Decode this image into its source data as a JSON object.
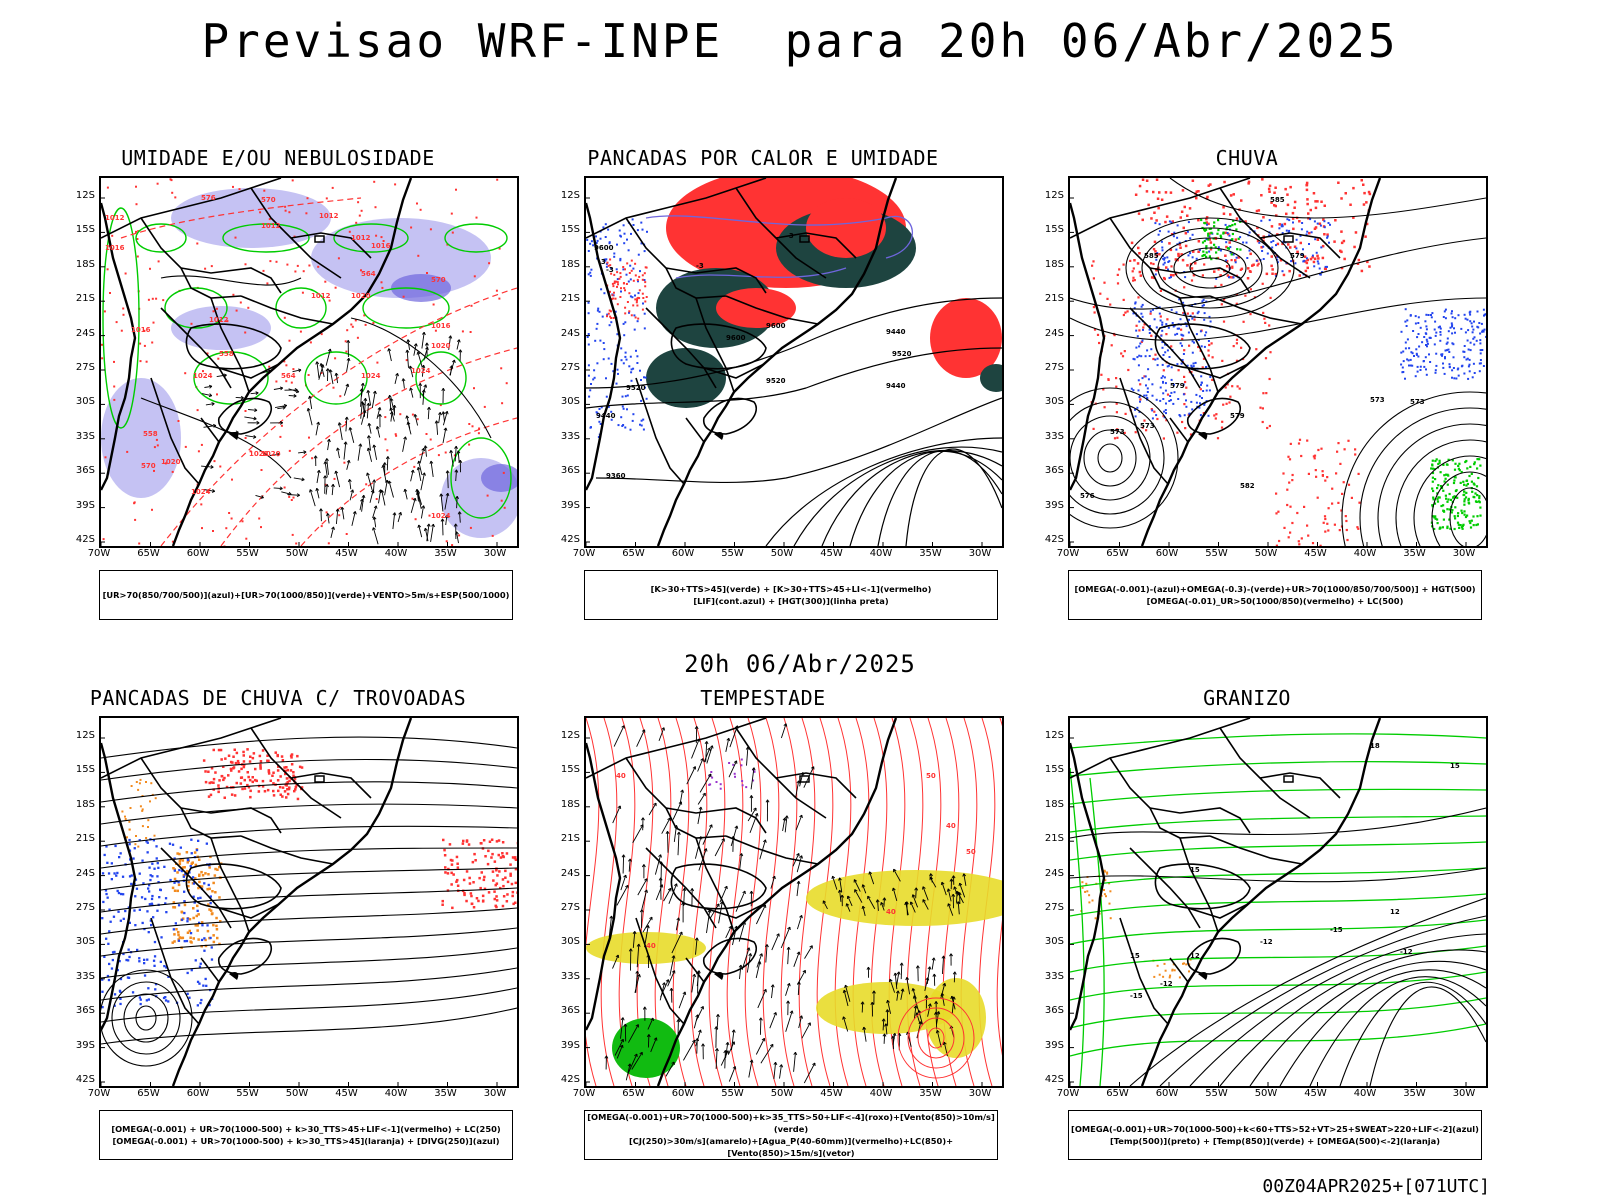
{
  "title": "Previsao WRF-INPE  para 20h 06/Abr/2025",
  "mid_label": "20h 06/Abr/2025",
  "footer": "00Z04APR2025+[071UTC]",
  "axes": {
    "lat_labels": [
      "12S",
      "15S",
      "18S",
      "21S",
      "24S",
      "27S",
      "30S",
      "33S",
      "36S",
      "39S",
      "42S"
    ],
    "lon_labels": [
      "70W",
      "65W",
      "60W",
      "55W",
      "50W",
      "45W",
      "40W",
      "35W",
      "30W"
    ]
  },
  "colors": {
    "blue_fill": "#b7b3f0",
    "blue_deep": "#6f66dd",
    "green": "#00cc00",
    "red": "#ff3333",
    "dark_teal": "#1e4440",
    "yellow": "#e8dc2a",
    "orange": "#f28a1e",
    "blue_dots": "#2244ee",
    "purple": "#9933cc"
  },
  "panels": [
    {
      "title": "UMIDADE E/OU NEBULOSIDADE",
      "legend": [
        "[UR>70(850/700/500)](azul)+[UR>70(1000/850)](verde)+VENTO>5m/s+ESP(500/1000)"
      ],
      "labels": [
        "1012",
        "1016",
        "1012",
        "1012",
        "1012",
        "1012",
        "1016",
        "1020",
        "1012",
        "1016",
        "1024",
        "1020",
        "1024",
        "1024",
        "1020",
        "1028",
        "1020",
        "1024",
        "1016",
        "1024",
        "576",
        "570",
        "564",
        "558",
        "558",
        "570",
        "570",
        "564"
      ]
    },
    {
      "title": "PANCADAS POR CALOR E UMIDADE",
      "legend": [
        "[K>30+TTS>45](verde) + [K>30+TTS>45+LI<-1](vermelho)",
        "[LIF](cont.azul) + [HGT(300)](linha preta)"
      ],
      "labels": [
        "9600",
        "9520",
        "9440",
        "9600",
        "9520",
        "9440",
        "9600",
        "9520",
        "9440",
        "9360",
        "-3",
        "-3",
        "-3",
        "-3"
      ]
    },
    {
      "title": "CHUVA",
      "legend": [
        "[OMEGA(-0.001)-(azul)+OMEGA(-0.3)-(verde)+UR>70(1000/850/700/500)] + HGT(500)",
        "[OMEGA(-0.01)_UR>50(1000/850)(vermelho) + LC(500)"
      ],
      "labels": [
        "585",
        "579",
        "573",
        "579",
        "573",
        "585",
        "576",
        "573",
        "582",
        "579",
        "573"
      ]
    },
    {
      "title": "PANCADAS DE CHUVA C/ TROVOADAS",
      "legend": [
        "[OMEGA(-0.001) + UR>70(1000-500) + k>30_TTS>45+LIF<-1](vermelho) + LC(250)",
        "[OMEGA(-0.001) + UR>70(1000-500) + k>30_TTS>45](laranja) + [DIVG(250)](azul)"
      ],
      "labels": []
    },
    {
      "title": "TEMPESTADE",
      "legend": [
        "[OMEGA(-0.001)+UR>70(1000-500)+k>35_TTS>50+LIF<-4](roxo)+[Vento(850)>10m/s](verde)",
        "[CJ(250)>30m/s](amarelo)+[Agua_P(40-60mm)](vermelho)+LC(850)+[Vento(850)>15m/s](vetor)"
      ],
      "labels": [
        "40",
        "40",
        "40",
        "50",
        "50",
        "40"
      ]
    },
    {
      "title": "GRANIZO",
      "legend": [
        "[OMEGA(-0.001)+UR>70(1000-500)+k<60+TTS>52+VT>25+SWEAT>220+LIF<-2](azul)",
        "[Temp(500)](preto) + [Temp(850)](verde) + [OMEGA(500)<-2](laranja)"
      ],
      "labels": [
        "-12",
        "-12",
        "-12",
        "-15",
        "15",
        "18",
        "15",
        "12",
        "15",
        "-15",
        "12"
      ]
    }
  ]
}
